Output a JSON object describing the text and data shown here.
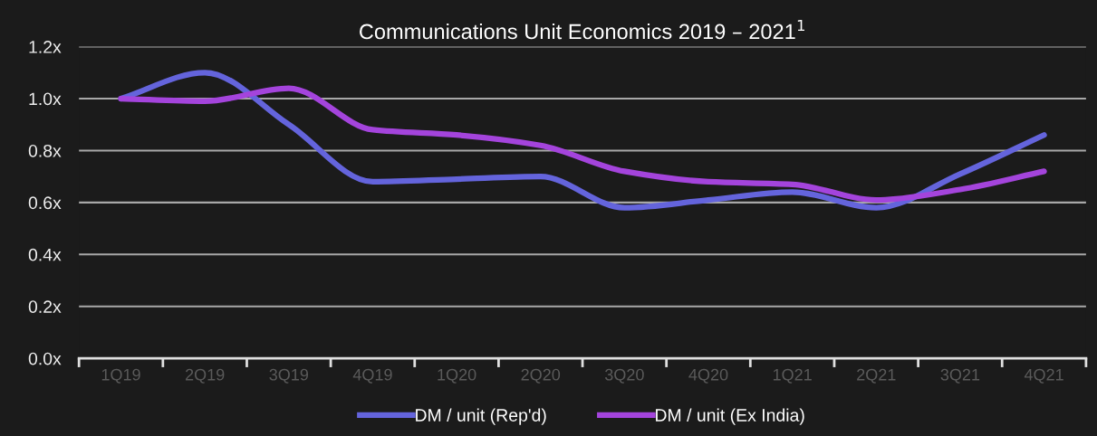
{
  "chart_data": {
    "type": "line",
    "title": "Communications Unit Economics 2019 – 2021$^{1}$",
    "categories": [
      "1Q19",
      "2Q19",
      "3Q19",
      "4Q19",
      "1Q20",
      "2Q20",
      "3Q20",
      "4Q20",
      "1Q21",
      "2Q21",
      "3Q21",
      "4Q21"
    ],
    "series": [
      {
        "name": "DM / unit (Rep'd)",
        "color": "#6464dc",
        "values": [
          1.0,
          1.1,
          0.9,
          0.68,
          0.69,
          0.7,
          0.58,
          0.61,
          0.64,
          0.58,
          0.71,
          0.86
        ]
      },
      {
        "name": "DM / unit (Ex India)",
        "color": "#a444dc",
        "values": [
          1.0,
          0.99,
          1.04,
          0.88,
          0.86,
          0.82,
          0.72,
          0.68,
          0.67,
          0.61,
          0.65,
          0.72
        ]
      }
    ],
    "ylim": [
      0,
      1.2
    ],
    "yticks": [
      {
        "value": 0,
        "label": "0.0x"
      },
      {
        "value": 0.2,
        "label": "0.2x"
      },
      {
        "value": 0.4,
        "label": "0.4x"
      },
      {
        "value": 0.6,
        "label": "0.6x"
      },
      {
        "value": 0.8,
        "label": "0.8x"
      },
      {
        "value": 1.0,
        "label": "1.0x"
      },
      {
        "value": 1.2,
        "label": "1.2x"
      }
    ],
    "grid": "y",
    "legend": "bottom",
    "marker": "none",
    "line_style": "solid"
  }
}
